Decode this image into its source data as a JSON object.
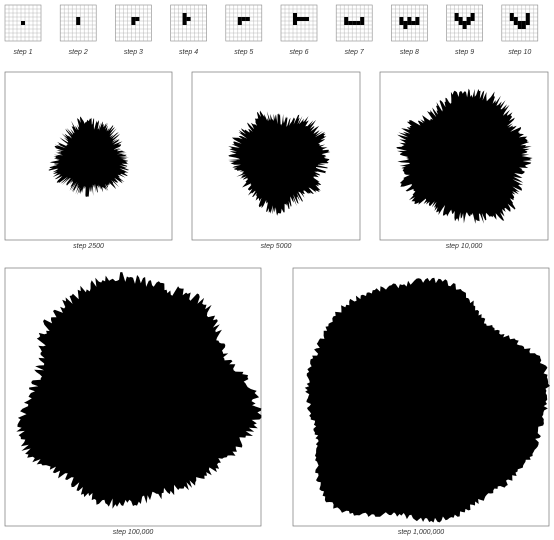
{
  "small_steps": [
    "step 1",
    "step 2",
    "step 3",
    "step 4",
    "step 5",
    "step 6",
    "step 7",
    "step 8",
    "step 9",
    "step 10"
  ],
  "large_steps": [
    "step 2500",
    "step 5000",
    "step 10,000",
    "step 100,000",
    "step 1,000,000"
  ]
}
